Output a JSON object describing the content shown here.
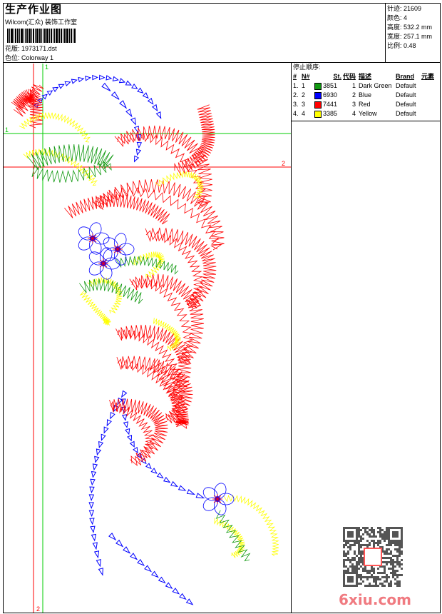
{
  "header": {
    "title": "生产作业图",
    "company": "Wilcom(汇众) 装饰工作室",
    "file_label": "花版:",
    "file_name": "1973171.dst",
    "colorway_label": "色位:",
    "colorway": "Colorway 1"
  },
  "stats": [
    {
      "label": "针迹:",
      "value": "21609"
    },
    {
      "label": "颜色:",
      "value": "4"
    },
    {
      "label": "高度:",
      "value": "532.2 mm"
    },
    {
      "label": "宽度:",
      "value": "257.1 mm"
    },
    {
      "label": "比例:",
      "value": "0.48"
    }
  ],
  "stop_sequence": {
    "label": "停止顺序:",
    "headers": [
      "#",
      "N#",
      "St.",
      "代码",
      "描述",
      "Brand",
      "元素"
    ],
    "rows": [
      {
        "idx": "1.",
        "n": "1",
        "color": "#119911",
        "st": "3851",
        "code": "1",
        "desc": "Dark Green",
        "brand": "Default"
      },
      {
        "idx": "2.",
        "n": "2",
        "color": "#0000ff",
        "st": "6930",
        "code": "2",
        "desc": "Blue",
        "brand": "Default"
      },
      {
        "idx": "3.",
        "n": "3",
        "color": "#ff0000",
        "st": "7441",
        "code": "3",
        "desc": "Red",
        "brand": "Default"
      },
      {
        "idx": "4.",
        "n": "4",
        "color": "#ffff00",
        "st": "3385",
        "code": "4",
        "desc": "Yellow",
        "brand": "Default"
      }
    ]
  },
  "guides": {
    "green_label": "1",
    "red_label": "2"
  },
  "watermark": "6xiu.com",
  "colors": {
    "green": "#119911",
    "blue": "#0000ff",
    "red": "#ff0000",
    "yellow": "#ffff00",
    "guide_green": "#00cc00",
    "guide_red": "#ff0000"
  }
}
